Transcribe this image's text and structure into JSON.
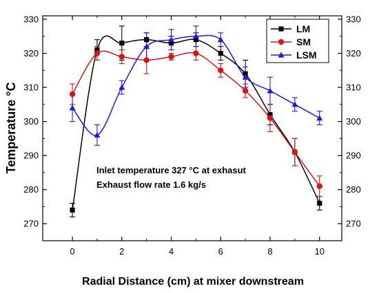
{
  "chart_data": {
    "type": "line",
    "title": "",
    "xlabel": "Radial Distance (cm) at mixer downstream",
    "ylabel": "Temperature °C",
    "xlim": [
      -1.2,
      10.9
    ],
    "ylim": [
      265,
      331
    ],
    "xticks": [
      0,
      2,
      4,
      6,
      8,
      10
    ],
    "yticks": [
      270,
      280,
      290,
      300,
      310,
      320,
      330
    ],
    "x": [
      0,
      1,
      2,
      3,
      4,
      5,
      6,
      7,
      8,
      9,
      10
    ],
    "series": [
      {
        "name": "LM",
        "color": "#000000",
        "marker": "square",
        "values": [
          274,
          321,
          323,
          324,
          323,
          324,
          320,
          314,
          302,
          291,
          276
        ],
        "errors": [
          2,
          3,
          5,
          2,
          2,
          2,
          2,
          4,
          3,
          4,
          2
        ]
      },
      {
        "name": "SM",
        "color": "#d01818",
        "marker": "circle",
        "values": [
          308,
          320,
          319,
          318,
          319,
          320,
          315,
          309,
          301,
          291,
          281
        ],
        "errors": [
          3,
          2,
          2,
          4,
          1,
          2,
          2,
          2,
          4,
          4,
          3
        ]
      },
      {
        "name": "LSM",
        "color": "#1c1cd8",
        "marker": "triangle",
        "values": [
          304,
          296,
          310,
          322,
          324,
          325,
          324,
          313,
          309,
          305,
          301
        ],
        "errors": [
          4,
          3,
          2,
          4,
          3,
          3,
          2,
          3,
          4,
          2,
          2
        ]
      }
    ],
    "annotations": [
      "Inlet temperature 327 °C at exhasut",
      "Exhaust flow rate 1.6 kg/s"
    ],
    "legend": {
      "position": "top-right"
    },
    "grid": false,
    "right_axis_mirrored": true
  }
}
